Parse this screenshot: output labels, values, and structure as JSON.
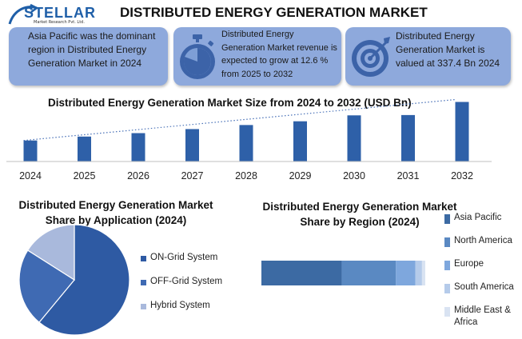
{
  "logo": {
    "name": "STELLAR",
    "tagline": "Market Research Pvt. Ltd."
  },
  "title": "DISTRIBUTED ENERGY GENERATION MARKET",
  "cards": [
    {
      "text_lines": [
        "Asia Pacific was the dominant",
        "region in Distributed Energy",
        "Generation Market in 2024"
      ]
    },
    {
      "icon": "stopwatch-icon",
      "text_lines": [
        "Distributed Energy",
        "Generation Market revenue is",
        "expected to grow at 12.6 %",
        "from 2025  to 2032"
      ]
    },
    {
      "icon": "target-icon",
      "text_lines": [
        "Distributed Energy",
        "Generation Market is",
        "valued at 337.4 Bn  2024"
      ]
    }
  ],
  "chart_data": [
    {
      "type": "bar",
      "title": "Distributed Energy Generation Market Size from 2024 to 2032 (USD Bn)",
      "categories": [
        "2024",
        "2025",
        "2026",
        "2027",
        "2028",
        "2029",
        "2030",
        "2031",
        "2032"
      ],
      "values": [
        337.4,
        400,
        455,
        520,
        585,
        645,
        740,
        745,
        955
      ],
      "ylim": [
        0,
        1000
      ],
      "trendline": "dotted",
      "color": "#2e60a8"
    },
    {
      "type": "pie",
      "title_lines": [
        "Distributed Energy Generation Market",
        "Share by Application (2024)"
      ],
      "labels": [
        "ON-Grid System",
        "OFF-Grid System",
        "Hybrid System"
      ],
      "values": [
        61,
        23,
        16
      ],
      "colors": [
        "#2e5aa3",
        "#3f6ab3",
        "#a9b9dc"
      ],
      "legend_position": "right"
    },
    {
      "type": "bar",
      "orientation": "horizontal-stacked",
      "title_lines": [
        "Distributed Energy Generation Market",
        "Share by Region (2024)"
      ],
      "labels": [
        "Asia Pacific",
        "North America",
        "Europe",
        "South America",
        "Middle East & Africa"
      ],
      "values": [
        49,
        33,
        12,
        4,
        2
      ],
      "colors": [
        "#3c6aa3",
        "#5a89c2",
        "#7ea7dd",
        "#b5cbea",
        "#d9e3f2"
      ],
      "legend_position": "right"
    }
  ]
}
